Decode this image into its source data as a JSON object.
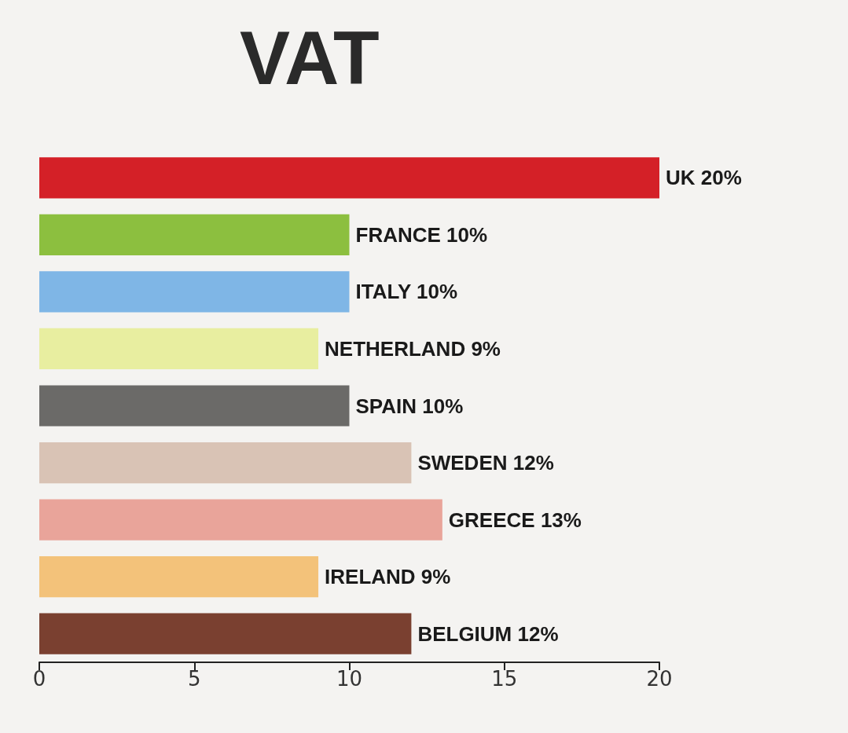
{
  "chart_data": {
    "type": "bar",
    "orientation": "horizontal",
    "title": "VAT",
    "categories": [
      null,
      null,
      null,
      null,
      null,
      null,
      null,
      null,
      null
    ],
    "values": [
      20,
      10,
      10,
      9,
      10,
      12,
      13,
      9,
      12
    ],
    "value_labels": [
      "UK 20%",
      "FRANCE 10%",
      "ITALY 10%",
      "NETHERLAND 9%",
      "SPAIN 10%",
      "SWEDEN 12%",
      "GREECE 13%",
      "IRELAND 9%",
      "BELGIUM 12%"
    ],
    "colors": [
      "#d42027",
      "#8cbf3f",
      "#7fb6e6",
      "#e8eea0",
      "#6b6a68",
      "#d9c3b5",
      "#e9a49a",
      "#f3c27a",
      "#7a4030"
    ],
    "xlim": [
      0,
      20
    ],
    "xticks": [
      0,
      5,
      10,
      15,
      20
    ],
    "tick_labels": "x"
  }
}
